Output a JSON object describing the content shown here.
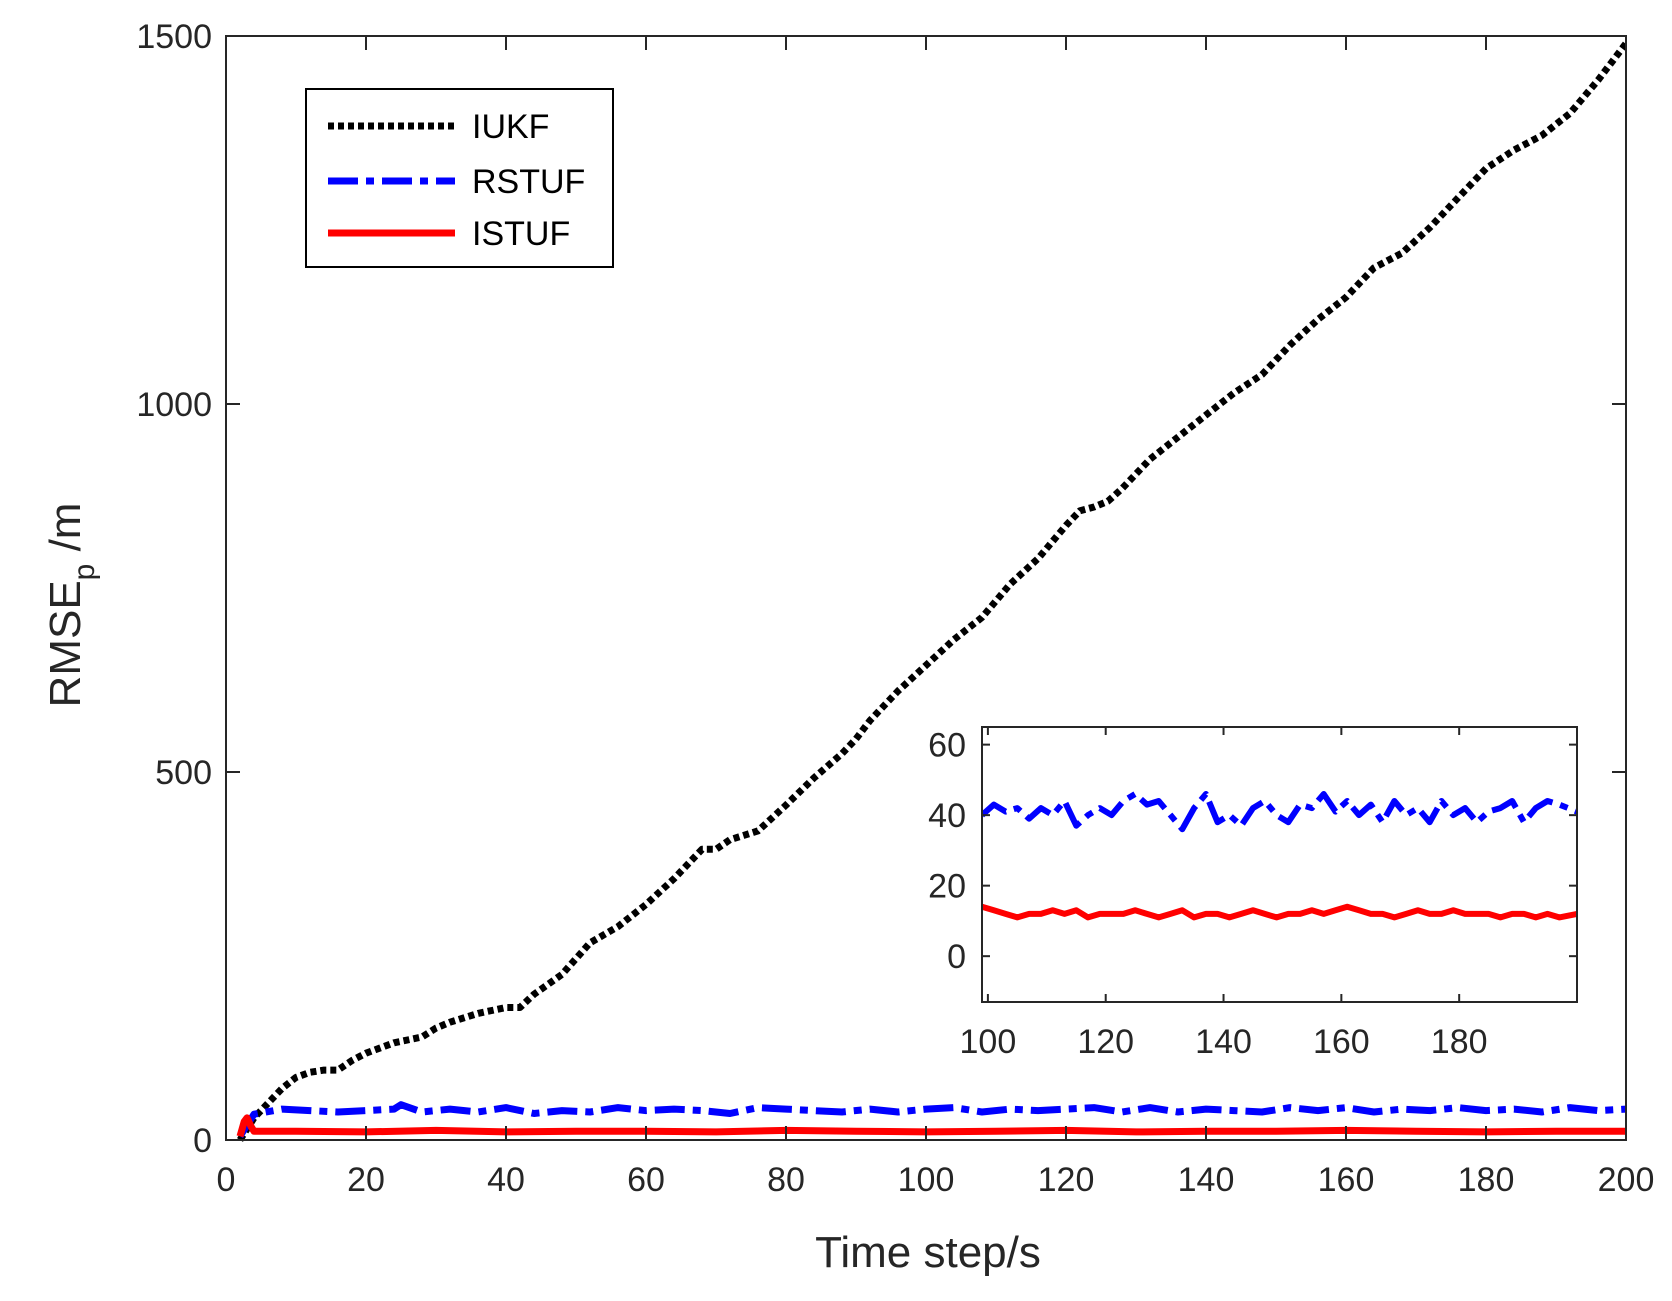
{
  "chart_data": [
    {
      "type": "line",
      "name": "main",
      "xlabel": "Time step/s",
      "ylabel": "RMSE",
      "ylabel_subscript": "p",
      "ylabel_suffix": " /m",
      "xlim": [
        0,
        200
      ],
      "ylim": [
        0,
        1500
      ],
      "xticks": [
        0,
        20,
        40,
        60,
        80,
        100,
        120,
        140,
        160,
        180,
        200
      ],
      "yticks": [
        0,
        500,
        1000,
        1500
      ],
      "grid": false,
      "legend_position": "top-left",
      "series": [
        {
          "name": "IUKF",
          "color": "#000000",
          "style": "dotted",
          "x": [
            2,
            4,
            6,
            8,
            10,
            12,
            14,
            16,
            18,
            20,
            24,
            28,
            30,
            32,
            36,
            40,
            42,
            44,
            48,
            52,
            56,
            60,
            64,
            68,
            70,
            72,
            76,
            80,
            84,
            88,
            90,
            92,
            96,
            100,
            104,
            108,
            112,
            116,
            120,
            122,
            124,
            126,
            128,
            132,
            136,
            140,
            144,
            148,
            152,
            156,
            160,
            164,
            168,
            172,
            176,
            180,
            184,
            188,
            192,
            196,
            200
          ],
          "values": [
            0,
            30,
            50,
            70,
            85,
            92,
            95,
            95,
            108,
            118,
            132,
            140,
            152,
            160,
            172,
            180,
            180,
            198,
            225,
            268,
            290,
            320,
            355,
            395,
            395,
            408,
            420,
            455,
            492,
            525,
            545,
            570,
            610,
            645,
            680,
            710,
            755,
            790,
            835,
            855,
            860,
            868,
            885,
            925,
            955,
            985,
            1015,
            1040,
            1080,
            1115,
            1145,
            1185,
            1205,
            1240,
            1280,
            1320,
            1345,
            1365,
            1395,
            1440,
            1490
          ]
        },
        {
          "name": "RSTUF",
          "color": "#0000FF",
          "style": "dashdot",
          "x": [
            2,
            3,
            4,
            8,
            12,
            16,
            20,
            24,
            25,
            28,
            32,
            36,
            40,
            44,
            48,
            52,
            56,
            60,
            64,
            68,
            72,
            76,
            80,
            84,
            88,
            92,
            96,
            100,
            104,
            108,
            112,
            116,
            120,
            124,
            128,
            132,
            136,
            140,
            144,
            148,
            152,
            156,
            160,
            164,
            168,
            172,
            176,
            180,
            184,
            188,
            192,
            196,
            200
          ],
          "values": [
            5,
            20,
            35,
            42,
            40,
            38,
            40,
            42,
            48,
            38,
            42,
            38,
            44,
            36,
            40,
            38,
            44,
            40,
            42,
            40,
            36,
            44,
            42,
            40,
            38,
            42,
            38,
            42,
            44,
            38,
            42,
            40,
            42,
            44,
            38,
            44,
            38,
            42,
            40,
            38,
            44,
            40,
            44,
            38,
            42,
            40,
            44,
            40,
            42,
            38,
            44,
            40,
            42
          ]
        },
        {
          "name": "ISTUF",
          "color": "#FF0000",
          "style": "solid",
          "x": [
            2,
            2.6,
            3,
            3.6,
            4,
            10,
            20,
            30,
            40,
            50,
            60,
            70,
            80,
            90,
            100,
            110,
            120,
            130,
            140,
            150,
            160,
            170,
            180,
            190,
            200
          ],
          "values": [
            5,
            25,
            30,
            18,
            12,
            12,
            11,
            13,
            11,
            12,
            12,
            11,
            13,
            12,
            11,
            12,
            13,
            11,
            12,
            12,
            13,
            12,
            11,
            12,
            12
          ]
        }
      ]
    },
    {
      "type": "line",
      "name": "inset",
      "xlim": [
        99,
        200
      ],
      "ylim": [
        -13,
        65
      ],
      "xticks": [
        100,
        120,
        140,
        160,
        180
      ],
      "yticks": [
        0,
        20,
        40,
        60
      ],
      "grid": false,
      "series": [
        {
          "name": "RSTUF",
          "color": "#0000FF",
          "style": "dashdot",
          "x": [
            99,
            101,
            103,
            105,
            107,
            109,
            111,
            113,
            115,
            117,
            119,
            121,
            123,
            125,
            127,
            129,
            131,
            133,
            135,
            137,
            139,
            141,
            143,
            145,
            147,
            149,
            151,
            153,
            155,
            157,
            159,
            161,
            163,
            165,
            167,
            169,
            171,
            173,
            175,
            177,
            179,
            181,
            183,
            185,
            187,
            189,
            191,
            193,
            195,
            197,
            200
          ],
          "values": [
            40,
            43,
            41,
            42,
            39,
            42,
            40,
            44,
            37,
            40,
            42,
            40,
            44,
            46,
            43,
            44,
            40,
            36,
            42,
            46,
            38,
            40,
            37,
            42,
            44,
            40,
            38,
            43,
            42,
            46,
            41,
            44,
            40,
            43,
            38,
            44,
            40,
            42,
            38,
            44,
            40,
            42,
            38,
            41,
            42,
            44,
            38,
            42,
            44,
            43,
            41
          ]
        },
        {
          "name": "ISTUF",
          "color": "#FF0000",
          "style": "solid",
          "x": [
            99,
            101,
            103,
            105,
            107,
            109,
            111,
            113,
            115,
            117,
            119,
            121,
            123,
            125,
            127,
            129,
            131,
            133,
            135,
            137,
            139,
            141,
            143,
            145,
            147,
            149,
            151,
            153,
            155,
            157,
            159,
            161,
            163,
            165,
            167,
            169,
            171,
            173,
            175,
            177,
            179,
            181,
            183,
            185,
            187,
            189,
            191,
            193,
            195,
            197,
            200
          ],
          "values": [
            14,
            13,
            12,
            11,
            12,
            12,
            13,
            12,
            13,
            11,
            12,
            12,
            12,
            13,
            12,
            11,
            12,
            13,
            11,
            12,
            12,
            11,
            12,
            13,
            12,
            11,
            12,
            12,
            13,
            12,
            13,
            14,
            13,
            12,
            12,
            11,
            12,
            13,
            12,
            12,
            13,
            12,
            12,
            12,
            11,
            12,
            12,
            11,
            12,
            11,
            12
          ]
        }
      ]
    }
  ]
}
